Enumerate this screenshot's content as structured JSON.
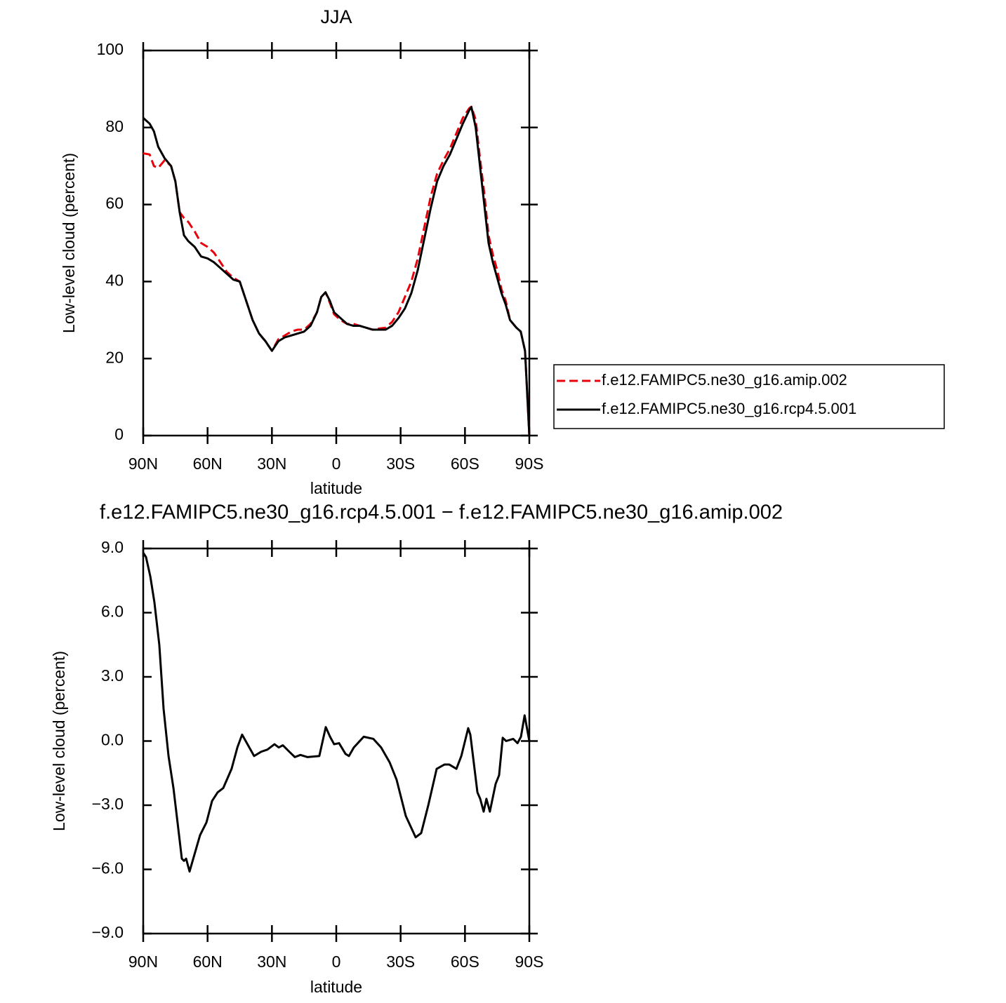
{
  "chart_data": [
    {
      "type": "line",
      "title": "JJA",
      "xlabel": "latitude",
      "ylabel": "Low-level cloud (percent)",
      "x": [
        90,
        87,
        85,
        83,
        80,
        77,
        75,
        73,
        71,
        69,
        66,
        63,
        60,
        57,
        54,
        51,
        48,
        45,
        42,
        39,
        36,
        33,
        30,
        27,
        24,
        21,
        18,
        15,
        12,
        9,
        7,
        5,
        3,
        1,
        -2,
        -5,
        -8,
        -11,
        -14,
        -17,
        -20,
        -23,
        -26,
        -29,
        -32,
        -35,
        -38,
        -41,
        -44,
        -47,
        -50,
        -53,
        -56,
        -59,
        -62,
        -63,
        -65,
        -67,
        -69,
        -71,
        -73,
        -75,
        -77,
        -79,
        -81,
        -84,
        -86,
        -88,
        -90
      ],
      "series": [
        {
          "name": "f.e12.FAMIPC5.ne30_g16.amip.002",
          "color": "#e8000b",
          "line_style": "dashed",
          "values": [
            73.3,
            73,
            70,
            69.5,
            71.5,
            70,
            66,
            58,
            56.5,
            55.5,
            53,
            50,
            49,
            47.5,
            45,
            42.5,
            41,
            40,
            35,
            30,
            26.5,
            24.5,
            22,
            25,
            26,
            27,
            27.5,
            27.5,
            29,
            32,
            36,
            37.2,
            34.5,
            31.5,
            30,
            29,
            29,
            28.5,
            28,
            27.5,
            27.8,
            28,
            29.5,
            32,
            36,
            40,
            46,
            54,
            62,
            68,
            71.5,
            74.5,
            78.5,
            82.5,
            85,
            85.4,
            82,
            72,
            63,
            52,
            47,
            43,
            38,
            35,
            30,
            28,
            27,
            22,
            0
          ]
        },
        {
          "name": "f.e12.FAMIPC5.ne30_g16.rcp4.5.001",
          "color": "#000000",
          "line_style": "solid",
          "values": [
            82.5,
            81,
            79,
            75,
            72,
            70,
            66,
            58,
            52,
            50.5,
            49,
            46.5,
            46,
            45,
            43.5,
            42,
            40.5,
            40,
            35,
            30,
            26.5,
            24.5,
            22,
            24.5,
            25.5,
            26,
            26.5,
            27,
            28.5,
            32,
            36,
            37.2,
            35,
            32,
            30.5,
            29,
            28.5,
            28.5,
            28,
            27.5,
            27.5,
            27.5,
            28.5,
            30.5,
            33,
            37,
            43,
            51,
            59,
            66,
            70,
            73,
            77,
            81,
            84.5,
            85.3,
            80,
            70,
            60,
            50,
            45,
            41,
            37,
            34,
            30,
            28,
            27,
            22,
            0
          ]
        }
      ],
      "xlim": [
        90,
        -90
      ],
      "xticks": [
        {
          "value": 90,
          "label": "90N"
        },
        {
          "value": 60,
          "label": "60N"
        },
        {
          "value": 30,
          "label": "30N"
        },
        0,
        {
          "value": -30,
          "label": "30S"
        },
        {
          "value": -60,
          "label": "60S"
        },
        {
          "value": -90,
          "label": "90S"
        }
      ],
      "ylim": [
        0,
        100
      ],
      "yticks": [
        0,
        20,
        40,
        60,
        80,
        100
      ],
      "legend": "right"
    },
    {
      "type": "line",
      "title": "f.e12.FAMIPC5.ne30_g16.rcp4.5.001 − f.e12.FAMIPC5.ne30_g16.amip.002",
      "xlabel": "latitude",
      "ylabel": "Low-level cloud (percent)",
      "x": [
        90,
        88.7,
        86.7,
        84.8,
        82.5,
        80.5,
        78.2,
        75.9,
        74,
        72,
        71,
        70,
        68.4,
        66.1,
        63.5,
        60.5,
        57.9,
        55.3,
        52.7,
        48.8,
        46.1,
        43.9,
        38.3,
        35,
        32.1,
        28.8,
        26.8,
        24.9,
        21.9,
        19.3,
        16.7,
        13.4,
        7.9,
        4.9,
        2.9,
        1,
        -1.3,
        -4.3,
        -5.9,
        -8.2,
        -12.8,
        -17.3,
        -20.9,
        -24.9,
        -28.1,
        -32.4,
        -37,
        -39.6,
        -42.9,
        -46.8,
        -50.4,
        -52.7,
        -56,
        -58.3,
        -61.5,
        -62.5,
        -65.8,
        -67.1,
        -68.7,
        -70,
        -71.6,
        -74.3,
        -75.9,
        -77.6,
        -79.2,
        -82.5,
        -84.5,
        -86.1,
        -87.8,
        -90
      ],
      "values": [
        8.8,
        8.6,
        7.7,
        6.5,
        4.5,
        1.5,
        -0.7,
        -2.2,
        -3.8,
        -5.5,
        -5.6,
        -5.5,
        -6.1,
        -5.3,
        -4.4,
        -3.8,
        -2.8,
        -2.4,
        -2.2,
        -1.3,
        -0.3,
        0.3,
        -0.7,
        -0.5,
        -0.4,
        -0.15,
        -0.3,
        -0.2,
        -0.5,
        -0.75,
        -0.65,
        -0.75,
        -0.7,
        0.65,
        0.2,
        -0.15,
        -0.1,
        -0.6,
        -0.7,
        -0.3,
        0.2,
        0.1,
        -0.3,
        -1,
        -1.8,
        -3.5,
        -4.5,
        -4.3,
        -3,
        -1.3,
        -1.1,
        -1.1,
        -1.3,
        -0.7,
        0.6,
        0.3,
        -2.4,
        -2.7,
        -3.3,
        -2.7,
        -3.3,
        -2,
        -1.6,
        0.15,
        0,
        0.1,
        -0.1,
        0.2,
        1.2,
        0
      ],
      "color": "#000000",
      "xlim": [
        90,
        -90
      ],
      "xticks": [
        {
          "value": 90,
          "label": "90N"
        },
        {
          "value": 60,
          "label": "60N"
        },
        {
          "value": 30,
          "label": "30N"
        },
        0,
        {
          "value": -30,
          "label": "30S"
        },
        {
          "value": -60,
          "label": "60S"
        },
        {
          "value": -90,
          "label": "90S"
        }
      ],
      "ylim": [
        -9,
        9
      ],
      "yticks": [
        {
          "value": -9,
          "label": "−9.0"
        },
        {
          "value": -6,
          "label": "−6.0"
        },
        {
          "value": -3,
          "label": "−3.0"
        },
        {
          "value": 0,
          "label": "0.0"
        },
        {
          "value": 3,
          "label": "3.0"
        },
        {
          "value": 6,
          "label": "6.0"
        },
        {
          "value": 9,
          "label": "9.0"
        }
      ]
    }
  ]
}
